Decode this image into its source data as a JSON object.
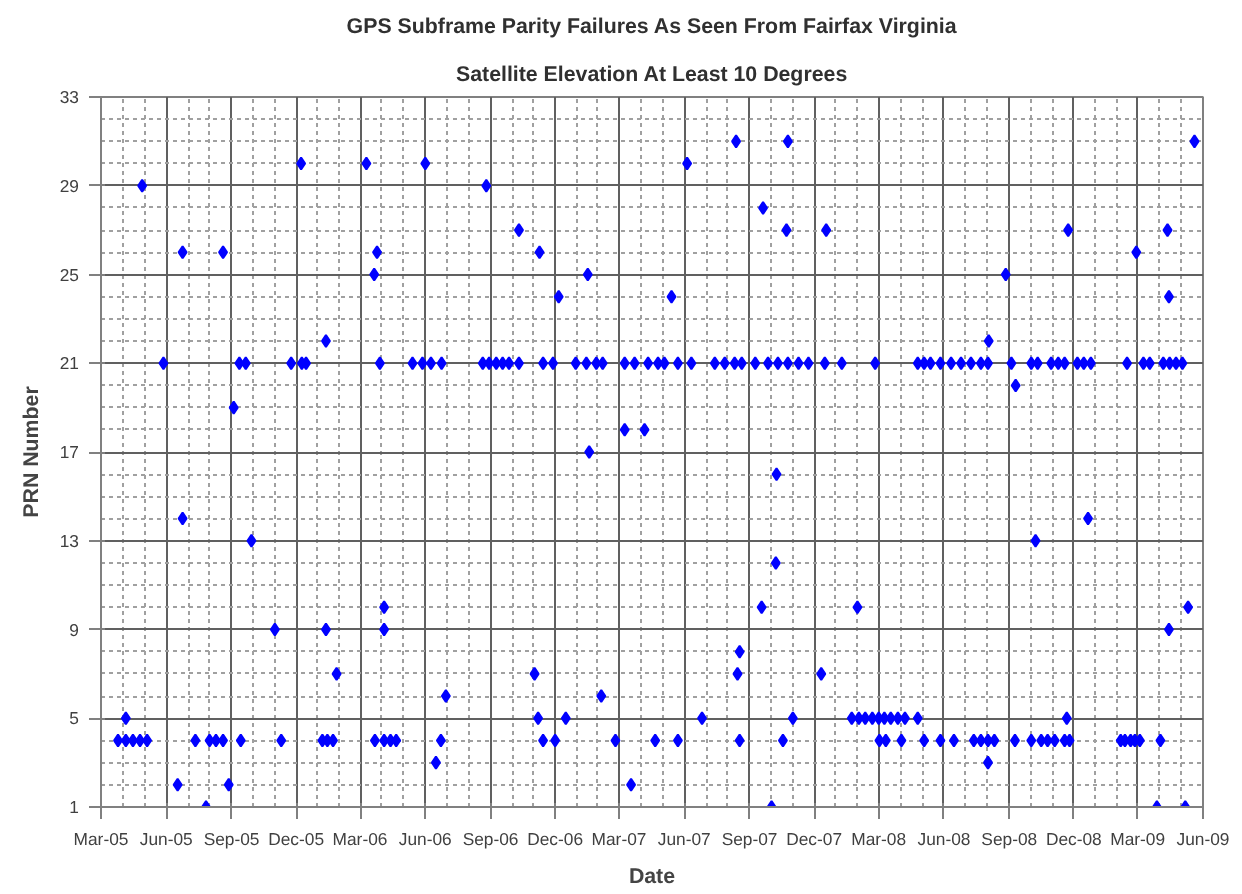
{
  "chart_data": {
    "type": "scatter",
    "title": "GPS Subframe Parity Failures As Seen From Fairfax Virginia",
    "subtitle": "Satellite Elevation At Least 10 Degrees",
    "xlabel": "Date",
    "ylabel": "PRN Number",
    "marker": "diamond",
    "grid": true,
    "xlim": [
      "2005-03-01",
      "2009-06-01"
    ],
    "xticks": [
      {
        "value": "2005-03-01",
        "label": "Mar-05"
      },
      {
        "value": "2005-06-01",
        "label": "Jun-05"
      },
      {
        "value": "2005-09-01",
        "label": "Sep-05"
      },
      {
        "value": "2005-12-01",
        "label": "Dec-05"
      },
      {
        "value": "2006-03-01",
        "label": "Mar-06"
      },
      {
        "value": "2006-06-01",
        "label": "Jun-06"
      },
      {
        "value": "2006-09-01",
        "label": "Sep-06"
      },
      {
        "value": "2006-12-01",
        "label": "Dec-06"
      },
      {
        "value": "2007-03-01",
        "label": "Mar-07"
      },
      {
        "value": "2007-06-01",
        "label": "Jun-07"
      },
      {
        "value": "2007-09-01",
        "label": "Sep-07"
      },
      {
        "value": "2007-12-01",
        "label": "Dec-07"
      },
      {
        "value": "2008-03-01",
        "label": "Mar-08"
      },
      {
        "value": "2008-06-01",
        "label": "Jun-08"
      },
      {
        "value": "2008-09-01",
        "label": "Sep-08"
      },
      {
        "value": "2008-12-01",
        "label": "Dec-08"
      },
      {
        "value": "2009-03-01",
        "label": "Mar-09"
      },
      {
        "value": "2009-06-01",
        "label": "Jun-09"
      }
    ],
    "ylim": [
      1,
      33
    ],
    "yticks": [
      1,
      5,
      9,
      13,
      17,
      21,
      25,
      29,
      33
    ],
    "series": [
      {
        "color": "#0000ff",
        "x": [
          "2005-03-25",
          "2005-04-05",
          "2005-04-15",
          "2005-04-25",
          "2005-05-05",
          "2005-04-05",
          "2005-04-28",
          "2005-05-28",
          "2005-06-24",
          "2005-06-24",
          "2005-06-17",
          "2005-07-12",
          "2005-07-27",
          "2005-08-01",
          "2005-08-10",
          "2005-08-20",
          "2005-08-20",
          "2005-08-28",
          "2005-09-04",
          "2005-09-12",
          "2005-09-21",
          "2005-09-14",
          "2005-09-29",
          "2005-11-01",
          "2005-11-10",
          "2005-11-24",
          "2005-12-09",
          "2005-12-15",
          "2005-12-08",
          "2006-01-12",
          "2006-01-12",
          "2006-01-07",
          "2006-01-14",
          "2006-01-22",
          "2006-01-27",
          "2006-03-10",
          "2006-03-21",
          "2006-03-25",
          "2006-03-29",
          "2006-04-04",
          "2006-04-04",
          "2006-03-22",
          "2006-04-04",
          "2006-04-13",
          "2006-04-21",
          "2006-05-14",
          "2006-05-28",
          "2006-06-09",
          "2006-06-24",
          "2006-06-01",
          "2006-08-26",
          "2006-10-11",
          "2006-11-09",
          "2007-01-16",
          "2006-12-06",
          "2007-05-14",
          "2007-08-13",
          "2007-10-25",
          "2007-06-05",
          "2007-09-20",
          "2007-10-23",
          "2007-12-18",
          "2006-08-21",
          "2006-08-30",
          "2006-09-09",
          "2006-09-18",
          "2006-09-27",
          "2006-10-11",
          "2006-11-14",
          "2006-11-28",
          "2006-12-30",
          "2007-01-14",
          "2007-01-28",
          "2007-02-06",
          "2007-03-09",
          "2007-03-23",
          "2007-04-11",
          "2007-04-25",
          "2007-05-04",
          "2007-05-23",
          "2007-06-11",
          "2007-07-14",
          "2007-07-28",
          "2007-08-11",
          "2007-08-21",
          "2007-09-09",
          "2007-09-27",
          "2007-10-11",
          "2007-10-25",
          "2007-11-09",
          "2007-11-23",
          "2007-12-16",
          "2008-01-09",
          "2007-03-09",
          "2007-04-06",
          "2007-01-18",
          "2007-10-09",
          "2007-10-08",
          "2007-09-18",
          "2007-08-18",
          "2007-08-15",
          "2007-12-11",
          "2006-11-02",
          "2006-06-30",
          "2007-02-04",
          "2006-11-07",
          "2006-12-16",
          "2007-06-26",
          "2007-11-01",
          "2006-11-14",
          "2006-12-01",
          "2007-02-24",
          "2007-04-21",
          "2007-05-23",
          "2007-08-18",
          "2007-10-18",
          "2006-06-23",
          "2006-06-16",
          "2007-03-18",
          "2007-10-02",
          "2009-05-20",
          "2008-11-23",
          "2009-04-12",
          "2009-02-27",
          "2008-08-27",
          "2009-04-14",
          "2008-08-03",
          "2008-09-10",
          "2008-02-25",
          "2008-04-25",
          "2008-05-04",
          "2008-05-13",
          "2008-05-27",
          "2008-06-11",
          "2008-06-25",
          "2008-07-09",
          "2008-07-23",
          "2008-08-02",
          "2008-09-04",
          "2008-10-02",
          "2008-10-11",
          "2008-10-30",
          "2008-11-09",
          "2008-11-18",
          "2008-12-06",
          "2008-12-15",
          "2008-12-25",
          "2009-02-14",
          "2009-03-09",
          "2009-03-18",
          "2009-04-06",
          "2009-04-15",
          "2009-04-24",
          "2009-05-03",
          "2008-12-21",
          "2008-10-08",
          "2008-01-31",
          "2009-05-11",
          "2009-04-14",
          "2008-01-23",
          "2008-02-02",
          "2008-02-11",
          "2008-02-21",
          "2008-03-01",
          "2008-03-09",
          "2008-03-18",
          "2008-03-28",
          "2008-04-07",
          "2008-04-25",
          "2008-11-21",
          "2008-03-02",
          "2008-03-11",
          "2008-04-02",
          "2008-05-04",
          "2008-05-27",
          "2008-06-15",
          "2008-07-13",
          "2008-07-23",
          "2008-08-02",
          "2008-08-11",
          "2008-09-09",
          "2008-10-02",
          "2008-10-16",
          "2008-10-25",
          "2008-11-04",
          "2008-11-18",
          "2008-11-25",
          "2009-02-05",
          "2009-02-11",
          "2009-02-19",
          "2009-02-25",
          "2009-03-04",
          "2009-04-02",
          "2008-08-02",
          "2009-03-28",
          "2009-05-07"
        ],
        "values": [
          4,
          4,
          4,
          4,
          4,
          5,
          29,
          21,
          26,
          14,
          2,
          4,
          1,
          4,
          4,
          4,
          26,
          2,
          19,
          21,
          21,
          4,
          13,
          9,
          4,
          21,
          21,
          21,
          30,
          22,
          9,
          4,
          4,
          4,
          7,
          30,
          25,
          26,
          21,
          10,
          9,
          4,
          4,
          4,
          4,
          21,
          21,
          21,
          21,
          30,
          29,
          27,
          26,
          25,
          24,
          24,
          31,
          31,
          30,
          28,
          27,
          27,
          21,
          21,
          21,
          21,
          21,
          21,
          21,
          21,
          21,
          21,
          21,
          21,
          21,
          21,
          21,
          21,
          21,
          21,
          21,
          21,
          21,
          21,
          21,
          21,
          21,
          21,
          21,
          21,
          21,
          21,
          21,
          18,
          18,
          17,
          16,
          12,
          10,
          8,
          7,
          7,
          7,
          6,
          6,
          5,
          5,
          5,
          5,
          4,
          4,
          4,
          4,
          4,
          4,
          4,
          4,
          3,
          2,
          1,
          31,
          27,
          27,
          26,
          25,
          24,
          22,
          20,
          21,
          21,
          21,
          21,
          21,
          21,
          21,
          21,
          21,
          21,
          21,
          21,
          21,
          21,
          21,
          21,
          21,
          21,
          21,
          21,
          21,
          21,
          21,
          21,
          21,
          21,
          14,
          13,
          10,
          10,
          9,
          5,
          5,
          5,
          5,
          5,
          5,
          5,
          5,
          5,
          5,
          5,
          4,
          4,
          4,
          4,
          4,
          4,
          4,
          4,
          4,
          4,
          4,
          4,
          4,
          4,
          4,
          4,
          4,
          4,
          4,
          4,
          4,
          4,
          4,
          3,
          1,
          1
        ]
      }
    ]
  }
}
